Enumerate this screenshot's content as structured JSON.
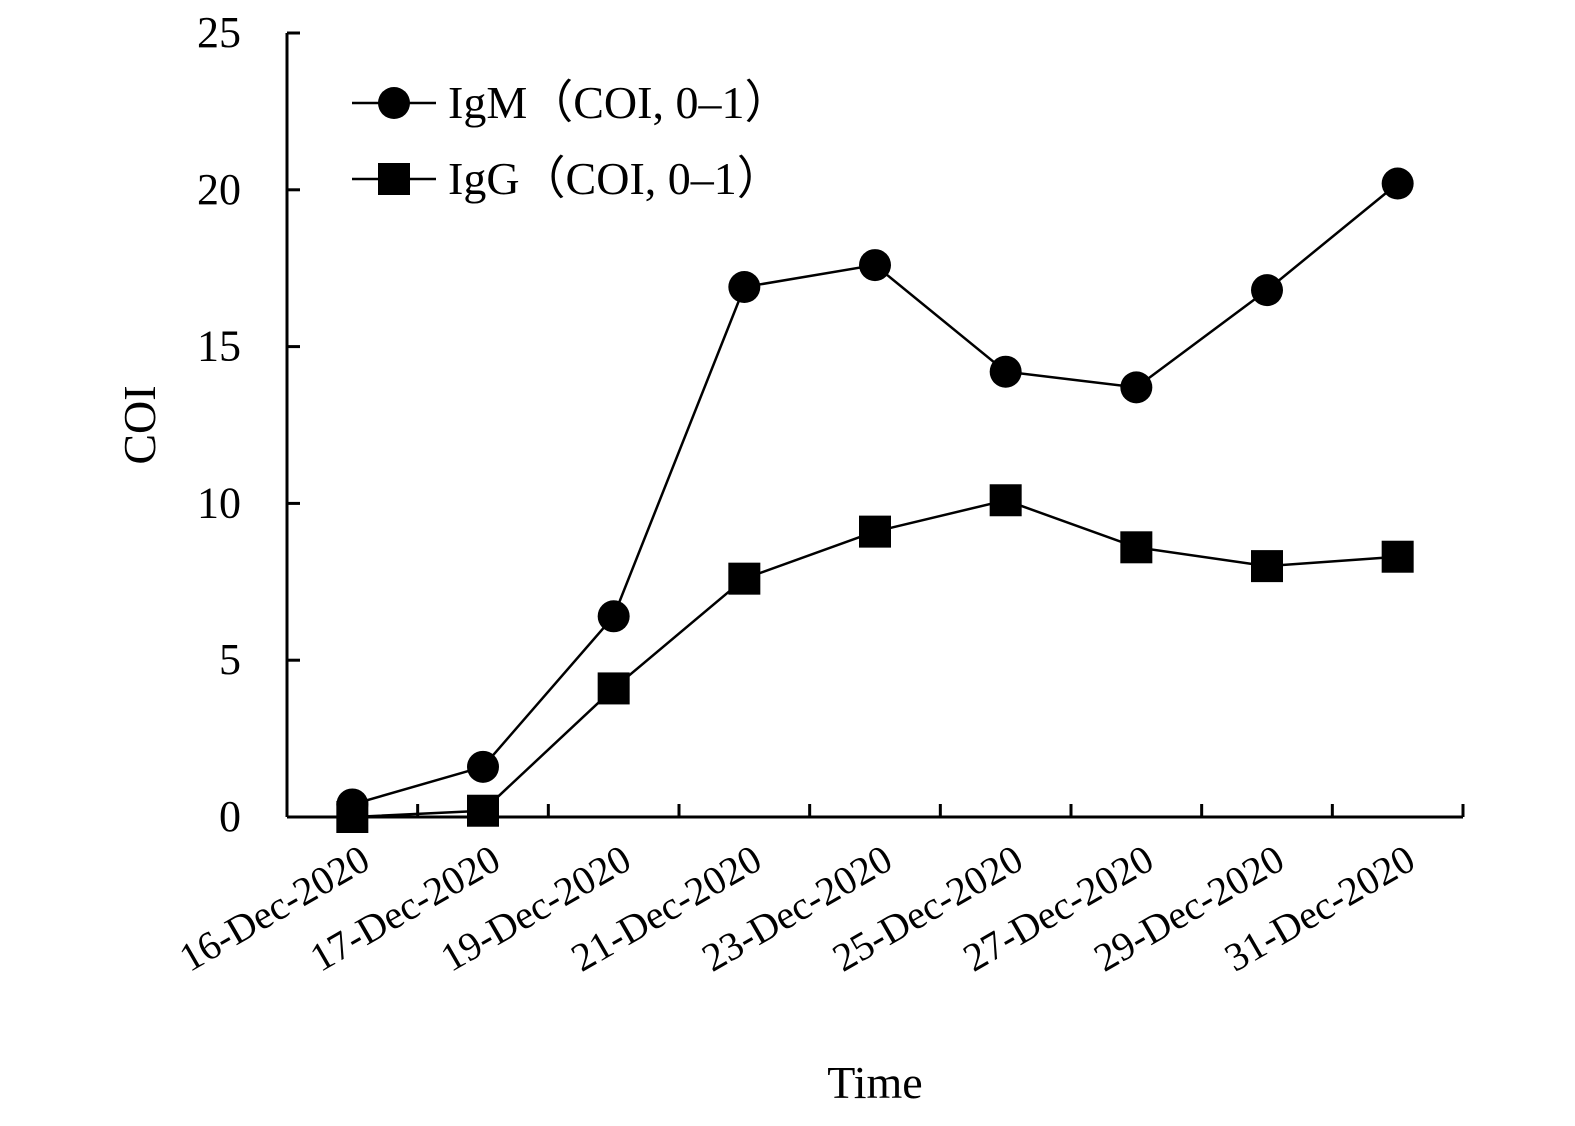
{
  "chart_data": {
    "type": "line",
    "categories": [
      "16-Dec-2020",
      "17-Dec-2020",
      "19-Dec-2020",
      "21-Dec-2020",
      "23-Dec-2020",
      "25-Dec-2020",
      "27-Dec-2020",
      "29-Dec-2020",
      "31-Dec-2020"
    ],
    "series": [
      {
        "name": "IgM（COI, 0–1）",
        "marker": "circle",
        "values": [
          0.4,
          1.6,
          6.4,
          16.9,
          17.6,
          14.2,
          13.7,
          16.8,
          20.2
        ]
      },
      {
        "name": "IgG（COI, 0–1）",
        "marker": "square",
        "values": [
          0.0,
          0.2,
          4.1,
          7.6,
          9.1,
          10.1,
          8.6,
          8.0,
          8.3
        ]
      }
    ],
    "title": "",
    "xlabel": "Time",
    "ylabel": "COI",
    "ylim": [
      0,
      25
    ],
    "yticks": [
      "0",
      "5",
      "10",
      "15",
      "20",
      "25"
    ],
    "grid": false,
    "legend_position": "top-left",
    "colors": {
      "line": "#000000",
      "marker": "#000000"
    }
  }
}
